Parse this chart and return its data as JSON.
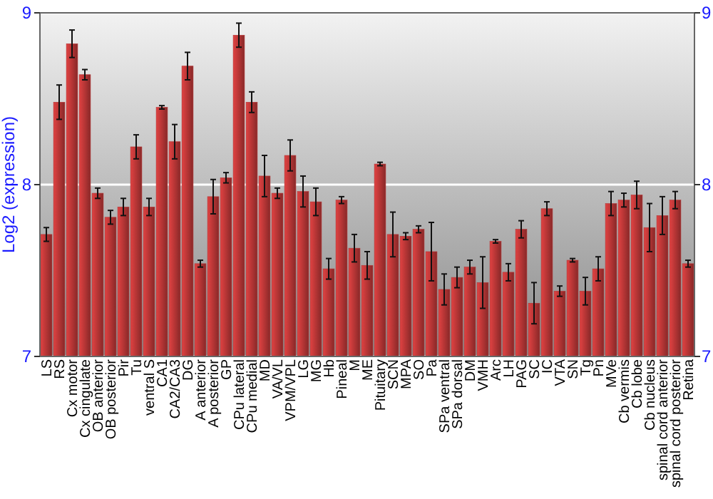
{
  "chart_data": {
    "type": "bar",
    "ylabel": "Log2 (expression)",
    "categories": [
      "LS",
      "RS",
      "Cx motor",
      "Cx cingulate",
      "OB anterior",
      "OB posterior",
      "Pir",
      "Tu",
      "ventral S",
      "CA1",
      "CA2/CA3",
      "DG",
      "A anterior",
      "A posterior",
      "GP",
      "CPu lateral",
      "CPu medial",
      "MD",
      "VA/VL",
      "VPM/VPL",
      "LG",
      "MG",
      "Hb",
      "Pineal",
      "M",
      "ME",
      "Pituitary",
      "SCN",
      "MPA",
      "SO",
      "Pa",
      "SPa ventral",
      "SPa dorsal",
      "DM",
      "VMH",
      "Arc",
      "LH",
      "PAG",
      "SC",
      "IC",
      "VTA",
      "SN",
      "Tg",
      "Pn",
      "MVe",
      "Cb vermis",
      "Cb lobe",
      "Cb nucleus",
      "spinal cord anterior",
      "spinal cord posterior",
      "Retina"
    ],
    "values": [
      7.71,
      8.48,
      8.82,
      8.64,
      7.95,
      7.81,
      7.87,
      8.22,
      7.87,
      8.45,
      8.25,
      8.69,
      7.54,
      7.93,
      8.04,
      8.87,
      8.48,
      8.05,
      7.95,
      8.17,
      7.96,
      7.9,
      7.51,
      7.91,
      7.63,
      7.53,
      8.12,
      7.71,
      7.7,
      7.74,
      7.61,
      7.39,
      7.46,
      7.52,
      7.43,
      7.67,
      7.49,
      7.74,
      7.31,
      7.86,
      7.38,
      7.56,
      7.38,
      7.51,
      7.89,
      7.91,
      7.94,
      7.75,
      7.82,
      7.91,
      7.54
    ],
    "errors": [
      0.04,
      0.1,
      0.08,
      0.03,
      0.03,
      0.04,
      0.05,
      0.07,
      0.05,
      0.01,
      0.1,
      0.08,
      0.02,
      0.1,
      0.03,
      0.07,
      0.06,
      0.12,
      0.03,
      0.09,
      0.09,
      0.08,
      0.06,
      0.02,
      0.08,
      0.08,
      0.01,
      0.13,
      0.02,
      0.02,
      0.17,
      0.09,
      0.06,
      0.04,
      0.15,
      0.01,
      0.05,
      0.05,
      0.12,
      0.04,
      0.03,
      0.01,
      0.08,
      0.07,
      0.07,
      0.04,
      0.08,
      0.14,
      0.11,
      0.05,
      0.02
    ],
    "color": "#b53535",
    "ylim": [
      7,
      9
    ],
    "yticks": [
      7,
      8,
      9
    ],
    "y2lim": [
      7,
      9
    ],
    "y2ticks": [
      7,
      8,
      9
    ],
    "grid": "y"
  }
}
